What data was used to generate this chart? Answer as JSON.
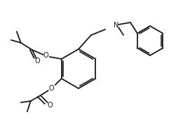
{
  "bg_color": "#ffffff",
  "line_color": "#1a1a1a",
  "line_width": 1.3,
  "figsize": [
    2.61,
    1.81
  ],
  "dpi": 100,
  "N_label": "N",
  "O_labels": [
    "O",
    "O",
    "O",
    "O"
  ],
  "font_size": 7.0
}
